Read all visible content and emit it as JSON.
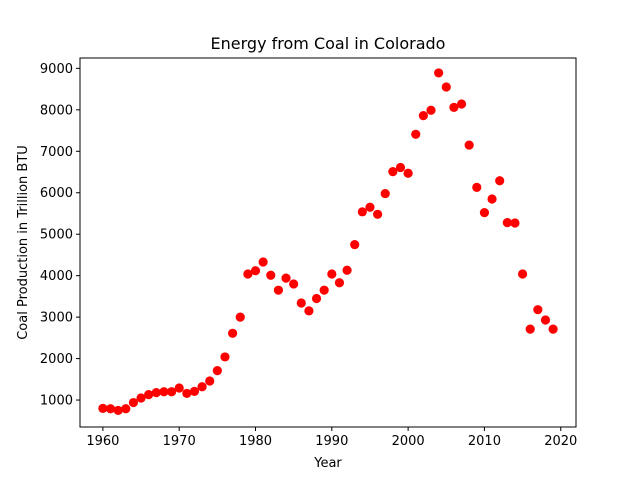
{
  "chart_data": {
    "type": "scatter",
    "title": "Energy from Coal in Colorado",
    "xlabel": "Year",
    "ylabel": "Coal Production in Trillion BTU",
    "xlim": [
      1957,
      2022
    ],
    "ylim": [
      350,
      9250
    ],
    "xticks": [
      1960,
      1970,
      1980,
      1990,
      2000,
      2010,
      2020
    ],
    "yticks": [
      1000,
      2000,
      3000,
      4000,
      5000,
      6000,
      7000,
      8000,
      9000
    ],
    "grid": false,
    "marker_color": "#ff0000",
    "series": [
      {
        "x": [
          1960,
          1961,
          1962,
          1963,
          1964,
          1965,
          1966,
          1967,
          1968,
          1969,
          1970,
          1971,
          1972,
          1973,
          1974,
          1975,
          1976,
          1977,
          1978,
          1979,
          1980,
          1981,
          1982,
          1983,
          1984,
          1985,
          1986,
          1987,
          1988,
          1989,
          1990,
          1991,
          1992,
          1993,
          1994,
          1995,
          1996,
          1997,
          1998,
          1999,
          2000,
          2001,
          2002,
          2003,
          2004,
          2005,
          2006,
          2007,
          2008,
          2009,
          2010,
          2011,
          2012,
          2013,
          2014,
          2015,
          2016,
          2017,
          2018,
          2019
        ],
        "y": [
          800,
          790,
          750,
          790,
          940,
          1050,
          1130,
          1180,
          1200,
          1200,
          1290,
          1160,
          1210,
          1320,
          1460,
          1710,
          2040,
          2610,
          3000,
          4040,
          4120,
          4330,
          4010,
          3650,
          3940,
          3800,
          3340,
          3150,
          3450,
          3650,
          4040,
          3830,
          4130,
          4750,
          5540,
          5650,
          5480,
          5980,
          6510,
          6610,
          6470,
          7410,
          7860,
          7990,
          8890,
          8550,
          8060,
          8140,
          7150,
          6130,
          5520,
          5850,
          6290,
          5280,
          5270,
          4040,
          2710,
          3180,
          2930,
          2710
        ]
      }
    ]
  }
}
